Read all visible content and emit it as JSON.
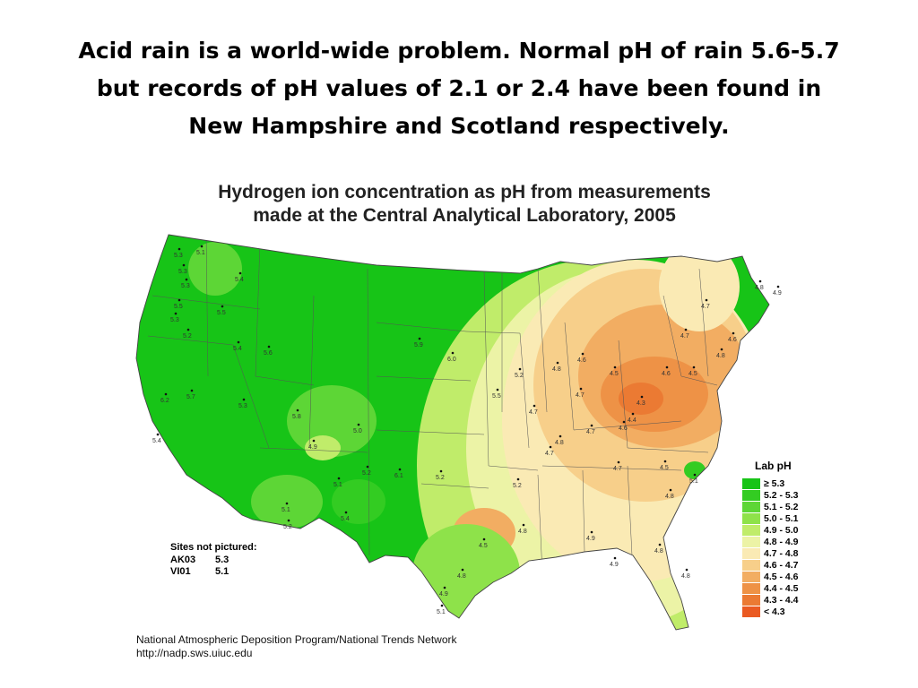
{
  "slide": {
    "title_lines": [
      "Acid rain is a world-wide problem.  Normal pH of rain 5.6-5.7",
      "but records of pH values of 2.1 or 2.4 have been found in",
      "New Hampshire and Scotland respectively."
    ]
  },
  "map": {
    "title_lines": [
      "Hydrogen ion concentration as pH from measurements",
      "made at the Central Analytical Laboratory, 2005"
    ],
    "legend": {
      "title": "Lab pH",
      "entries": [
        {
          "label": "≥ 5.3",
          "color": "#17c417"
        },
        {
          "label": "5.2 - 5.3",
          "color": "#33cc22"
        },
        {
          "label": "5.1 - 5.2",
          "color": "#5dd636"
        },
        {
          "label": "5.0 - 5.1",
          "color": "#8ee24a"
        },
        {
          "label": "4.9 - 5.0",
          "color": "#c0ec6a"
        },
        {
          "label": "4.8 - 4.9",
          "color": "#ecf3a6"
        },
        {
          "label": "4.7 - 4.8",
          "color": "#faeab4"
        },
        {
          "label": "4.6 - 4.7",
          "color": "#f7cf8a"
        },
        {
          "label": "4.5 - 4.6",
          "color": "#f2ad62"
        },
        {
          "label": "4.4 - 4.5",
          "color": "#ee9246"
        },
        {
          "label": "4.3 - 4.4",
          "color": "#eb7a33"
        },
        {
          "label": "< 4.3",
          "color": "#ea5a22"
        }
      ]
    },
    "sites_not_pictured": {
      "title": "Sites not pictured:",
      "rows": [
        {
          "id": "AK03",
          "value": "5.3"
        },
        {
          "id": "VI01",
          "value": "5.1"
        }
      ]
    },
    "credit_lines": [
      "National Atmospheric Deposition Program/National Trends Network",
      "http://nadp.sws.uiuc.edu"
    ],
    "site_labels": [
      "5.3",
      "5.1",
      "5.3",
      "5.4",
      "5.3",
      "5.5",
      "5.3",
      "5.5",
      "5.2",
      "5.4",
      "6.2",
      "5.7",
      "5.4",
      "5.3",
      "5.0",
      "5.8",
      "5.6",
      "5.9",
      "6.0",
      "5.2",
      "5.1",
      "4.9",
      "5.2",
      "5.4",
      "5.2",
      "5.1",
      "5.2",
      "6.1",
      "5.2",
      "5.1",
      "4.9",
      "5.5",
      "4.5",
      "4.8",
      "4.8",
      "4.6",
      "4.7",
      "4.7",
      "4.8",
      "4.5",
      "4.4",
      "4.3",
      "4.6",
      "4.5",
      "4.7",
      "4.6",
      "4.7",
      "4.8",
      "4.8",
      "4.9",
      "4.8",
      "4.7",
      "4.7",
      "4.6",
      "4.5",
      "4.7",
      "4.8",
      "5.1",
      "4.8",
      "4.9",
      "4.8",
      "4.9"
    ]
  }
}
